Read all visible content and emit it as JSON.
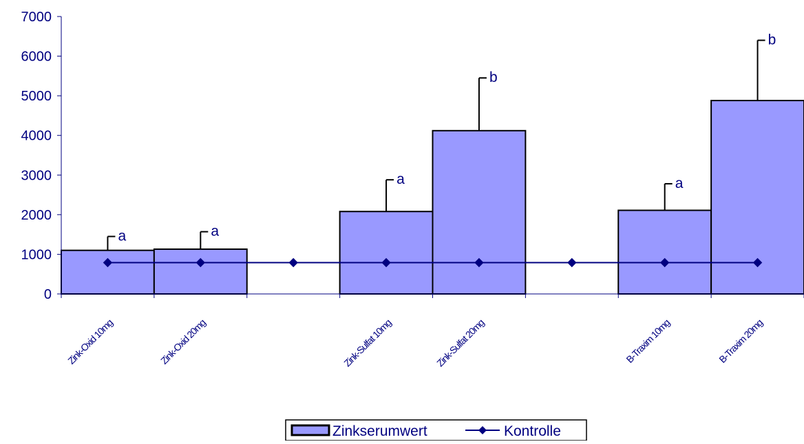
{
  "colors": {
    "bar_fill": "#9999ff",
    "bar_stroke": "#000000",
    "axis": "#000080",
    "text": "#000080",
    "control_line": "#000080",
    "legend_text": "#000080"
  },
  "chart_data": {
    "type": "bar",
    "title": "",
    "xlabel": "",
    "ylabel": "",
    "ylim": [
      0,
      7000
    ],
    "yticks": [
      0,
      1000,
      2000,
      3000,
      4000,
      5000,
      6000,
      7000
    ],
    "grid": false,
    "legend_position": "bottom-center",
    "categories": [
      "Zink-Oxid 10mg",
      "Zink-Oxid 20mg",
      "",
      "Zink-Sulfat 10mg",
      "Zink-Sulfat 20mg",
      "",
      "B-Traxim 10mg",
      "B-Traxim 20mg"
    ],
    "series": [
      {
        "name": "Zinkserumwert",
        "kind": "bar",
        "values": [
          1100,
          1130,
          null,
          2080,
          4120,
          null,
          2110,
          4880
        ],
        "error_upper": [
          1450,
          1570,
          null,
          2880,
          5450,
          null,
          2780,
          6400
        ],
        "annotations": [
          "a",
          "a",
          "",
          "a",
          "b",
          "",
          "a",
          "b"
        ]
      },
      {
        "name": "Kontrolle",
        "kind": "line",
        "marker": "diamond",
        "values": [
          790,
          790,
          790,
          790,
          790,
          790,
          790,
          790
        ]
      }
    ]
  }
}
